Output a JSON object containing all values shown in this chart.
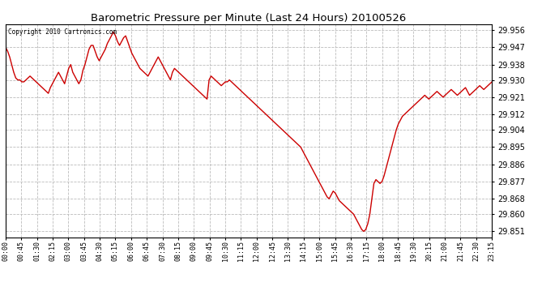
{
  "title": "Barometric Pressure per Minute (Last 24 Hours) 20100526",
  "copyright": "Copyright 2010 Cartronics.com",
  "line_color": "#cc0000",
  "bg_color": "#ffffff",
  "grid_color": "#bbbbbb",
  "yticks": [
    29.851,
    29.86,
    29.868,
    29.877,
    29.886,
    29.895,
    29.904,
    29.912,
    29.921,
    29.93,
    29.938,
    29.947,
    29.956
  ],
  "xtick_labels": [
    "00:00",
    "00:45",
    "01:30",
    "02:15",
    "03:00",
    "03:45",
    "04:30",
    "05:15",
    "06:00",
    "06:45",
    "07:30",
    "08:15",
    "09:00",
    "09:45",
    "10:30",
    "11:15",
    "12:00",
    "12:45",
    "13:30",
    "14:15",
    "15:00",
    "15:45",
    "16:30",
    "17:15",
    "18:00",
    "18:45",
    "19:30",
    "20:15",
    "21:00",
    "21:45",
    "22:30",
    "23:15"
  ],
  "ylim": [
    29.848,
    29.959
  ],
  "xlim": [
    0,
    1440
  ],
  "pressure_data": [
    29.947,
    29.945,
    29.942,
    29.938,
    29.934,
    29.931,
    29.93,
    29.93,
    29.929,
    29.929,
    29.93,
    29.931,
    29.932,
    29.931,
    29.93,
    29.929,
    29.928,
    29.927,
    29.926,
    29.925,
    29.924,
    29.923,
    29.926,
    29.928,
    29.93,
    29.932,
    29.934,
    29.932,
    29.93,
    29.928,
    29.932,
    29.936,
    29.938,
    29.934,
    29.932,
    29.93,
    29.928,
    29.93,
    29.935,
    29.938,
    29.942,
    29.946,
    29.948,
    29.948,
    29.945,
    29.942,
    29.94,
    29.942,
    29.944,
    29.946,
    29.949,
    29.951,
    29.953,
    29.955,
    29.953,
    29.95,
    29.948,
    29.95,
    29.952,
    29.953,
    29.95,
    29.947,
    29.944,
    29.942,
    29.94,
    29.938,
    29.936,
    29.935,
    29.934,
    29.933,
    29.932,
    29.934,
    29.936,
    29.938,
    29.94,
    29.942,
    29.94,
    29.938,
    29.936,
    29.934,
    29.932,
    29.93,
    29.934,
    29.936,
    29.935,
    29.934,
    29.933,
    29.932,
    29.931,
    29.93,
    29.929,
    29.928,
    29.927,
    29.926,
    29.925,
    29.924,
    29.923,
    29.922,
    29.921,
    29.92,
    29.93,
    29.932,
    29.931,
    29.93,
    29.929,
    29.928,
    29.927,
    29.928,
    29.929,
    29.929,
    29.93,
    29.929,
    29.928,
    29.927,
    29.926,
    29.925,
    29.924,
    29.923,
    29.922,
    29.921,
    29.92,
    29.919,
    29.918,
    29.917,
    29.916,
    29.915,
    29.914,
    29.913,
    29.912,
    29.911,
    29.91,
    29.909,
    29.908,
    29.907,
    29.906,
    29.905,
    29.904,
    29.903,
    29.902,
    29.901,
    29.9,
    29.899,
    29.898,
    29.897,
    29.896,
    29.895,
    29.893,
    29.891,
    29.889,
    29.887,
    29.885,
    29.883,
    29.881,
    29.879,
    29.877,
    29.875,
    29.873,
    29.871,
    29.869,
    29.868,
    29.87,
    29.872,
    29.871,
    29.869,
    29.867,
    29.866,
    29.865,
    29.864,
    29.863,
    29.862,
    29.861,
    29.86,
    29.858,
    29.856,
    29.854,
    29.852,
    29.851,
    29.852,
    29.855,
    29.86,
    29.868,
    29.876,
    29.878,
    29.877,
    29.876,
    29.877,
    29.88,
    29.884,
    29.888,
    29.892,
    29.896,
    29.9,
    29.904,
    29.907,
    29.909,
    29.911,
    29.912,
    29.913,
    29.914,
    29.915,
    29.916,
    29.917,
    29.918,
    29.919,
    29.92,
    29.921,
    29.922,
    29.921,
    29.92,
    29.921,
    29.922,
    29.923,
    29.924,
    29.923,
    29.922,
    29.921,
    29.922,
    29.923,
    29.924,
    29.925,
    29.924,
    29.923,
    29.922,
    29.923,
    29.924,
    29.925,
    29.926,
    29.924,
    29.922,
    29.923,
    29.924,
    29.925,
    29.926,
    29.927,
    29.926,
    29.925,
    29.926,
    29.927,
    29.928,
    29.929
  ]
}
